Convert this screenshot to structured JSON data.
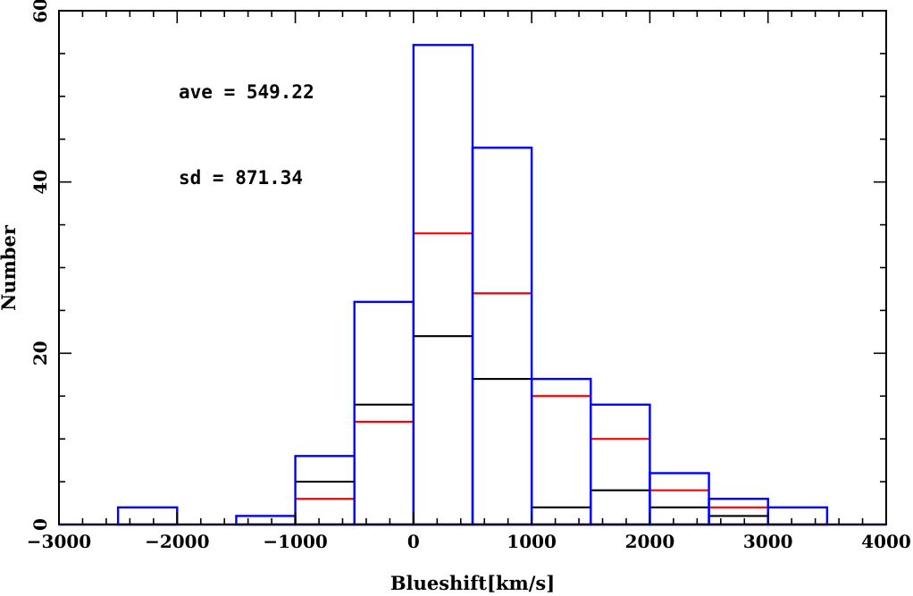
{
  "chart_data": {
    "type": "histogram",
    "title": "",
    "xlabel": "Blueshift[km/s]",
    "ylabel": "Number",
    "xlim": [
      -3000,
      4000
    ],
    "ylim": [
      0,
      60
    ],
    "x_ticks": [
      -3000,
      -2000,
      -1000,
      0,
      1000,
      2000,
      3000,
      4000
    ],
    "y_ticks": [
      0,
      20,
      40,
      60
    ],
    "bin_edges": [
      -2500,
      -2000,
      -1500,
      -1000,
      -500,
      0,
      500,
      1000,
      1500,
      2000,
      2500,
      3000,
      3500
    ],
    "series": [
      {
        "color": "#0000ff",
        "style": "outline",
        "values": [
          2,
          0,
          1,
          8,
          26,
          56,
          44,
          17,
          14,
          6,
          3,
          2
        ]
      },
      {
        "color": "#ff0000",
        "style": "level",
        "values": [
          0,
          0,
          0,
          3,
          12,
          34,
          27,
          15,
          10,
          4,
          2,
          0
        ]
      },
      {
        "color": "#000000",
        "style": "level",
        "values": [
          0,
          0,
          0,
          5,
          14,
          22,
          17,
          2,
          4,
          2,
          1,
          0
        ]
      }
    ],
    "annotations": [
      {
        "text": "ave = 549.22"
      },
      {
        "text": "sd = 871.34"
      }
    ],
    "grid": false,
    "legend": "none"
  }
}
